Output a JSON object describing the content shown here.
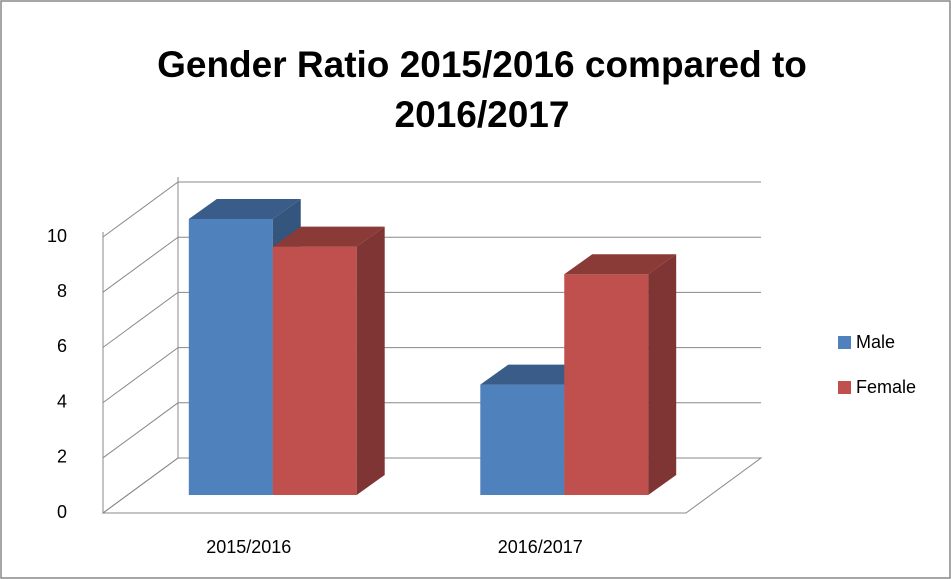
{
  "chart_data": {
    "type": "bar3d",
    "title": "Gender Ratio 2015/2016 compared to 2016/2017",
    "categories": [
      "2015/2016",
      "2016/2017"
    ],
    "series": [
      {
        "name": "Male",
        "color": "#4f81bd",
        "values": [
          10,
          4
        ]
      },
      {
        "name": "Female",
        "color": "#c0504d",
        "values": [
          9,
          8
        ]
      }
    ],
    "ylim": [
      0,
      10
    ],
    "yticks": [
      0,
      2,
      4,
      6,
      8,
      10
    ],
    "grid": true,
    "legend": "right"
  }
}
